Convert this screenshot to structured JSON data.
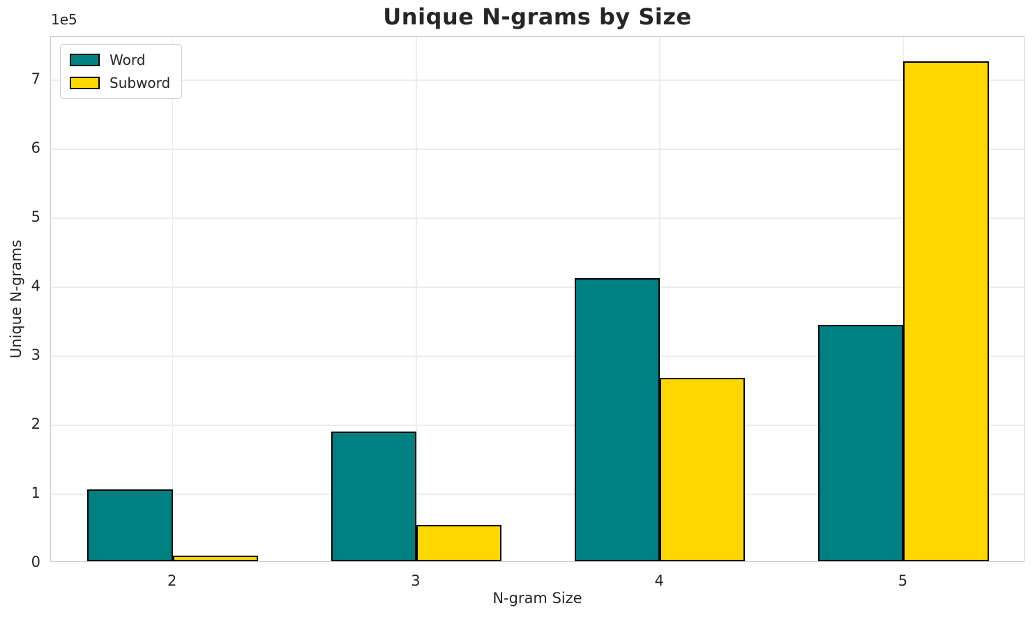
{
  "chart_data": {
    "type": "bar",
    "title": "Unique N-grams by Size",
    "xlabel": "N-gram Size",
    "ylabel": "Unique N-grams",
    "categories": [
      "2",
      "3",
      "4",
      "5"
    ],
    "series": [
      {
        "name": "Word",
        "color": "#008080",
        "values": [
          104000,
          188000,
          410000,
          343000
        ]
      },
      {
        "name": "Subword",
        "color": "#FFD700",
        "values": [
          8000,
          53000,
          266000,
          725000
        ]
      }
    ],
    "bar_edge_color": "#000000",
    "bar_width_ratio": 0.35,
    "ylim": [
      0,
      762000
    ],
    "yticks": {
      "values": [
        0,
        100000,
        200000,
        300000,
        400000,
        500000,
        600000,
        700000
      ],
      "labels": [
        "0",
        "1",
        "2",
        "3",
        "4",
        "5",
        "6",
        "7"
      ],
      "offset_text": "1e5"
    },
    "grid": true,
    "legend": {
      "position": "upper left"
    }
  },
  "style": {
    "background": "#ffffff",
    "grid_color": "#ececec",
    "spine_color": "#cccccc",
    "text_color": "#262626"
  }
}
